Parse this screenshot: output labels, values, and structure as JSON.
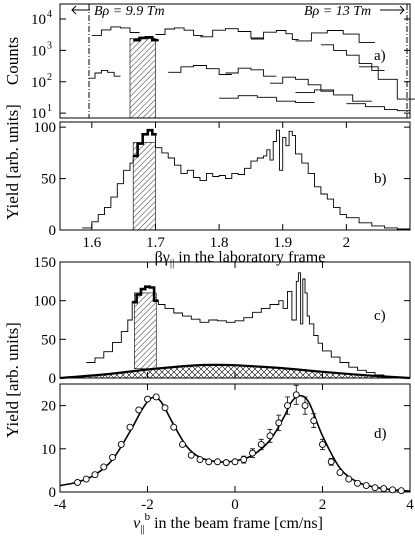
{
  "chart_data": [
    {
      "panel": "a)",
      "type": "line",
      "ylabel": "Counts",
      "yscale": "log",
      "ylim": [
        7,
        30000
      ],
      "yticks": [
        "10",
        "10",
        "10",
        "10"
      ],
      "ytick_exponents": [
        "1",
        "2",
        "3",
        "4"
      ],
      "ytick_values": [
        10,
        100,
        1000,
        10000
      ],
      "annotations": {
        "left_rigidity": "Bρ = 9.9 Tm",
        "right_rigidity": "Bρ = 13 Tm"
      },
      "highlight_range": [
        1.66,
        1.7
      ],
      "series": [
        {
          "x": [
            1.6,
            1.615,
            1.63,
            1.645,
            1.66
          ],
          "y": [
            3000,
            4500,
            5600,
            5200,
            3700
          ]
        },
        {
          "x": [
            1.595,
            1.605,
            1.615,
            1.625,
            1.635
          ],
          "y": [
            130,
            190,
            230,
            200,
            150
          ]
        },
        {
          "x": [
            1.665,
            1.675,
            1.685,
            1.695
          ],
          "y": [
            2100,
            2500,
            2600,
            2100
          ]
        },
        {
          "x": [
            1.7,
            1.715,
            1.73,
            1.745,
            1.76
          ],
          "y": [
            3200,
            4800,
            5200,
            4400,
            3000
          ]
        },
        {
          "x": [
            1.77,
            1.79,
            1.81,
            1.83,
            1.85
          ],
          "y": [
            2700,
            4400,
            4900,
            4000,
            2500
          ]
        },
        {
          "x": [
            1.85,
            1.87,
            1.89,
            1.905,
            1.915
          ],
          "y": [
            2300,
            3800,
            4300,
            3400,
            2200
          ]
        },
        {
          "x": [
            1.92,
            1.945,
            1.97,
            1.995,
            2.02
          ],
          "y": [
            2000,
            3600,
            4300,
            3300,
            1800
          ]
        },
        {
          "x": [
            1.72,
            1.74,
            1.76,
            1.78,
            1.8
          ],
          "y": [
            200,
            300,
            330,
            260,
            170
          ]
        },
        {
          "x": [
            1.81,
            1.83,
            1.85,
            1.87
          ],
          "y": [
            190,
            270,
            240,
            150
          ]
        },
        {
          "x": [
            1.88,
            1.9,
            1.92,
            1.94,
            1.96
          ],
          "y": [
            90,
            140,
            120,
            80,
            50
          ]
        },
        {
          "x": [
            1.96,
            1.98,
            2.0,
            2.02,
            2.04
          ],
          "y": [
            1500,
            1000,
            700,
            380,
            230
          ]
        },
        {
          "x": [
            1.8,
            1.83,
            1.86,
            1.89,
            1.92
          ],
          "y": [
            30,
            36,
            32,
            24,
            22
          ]
        },
        {
          "x": [
            1.92,
            1.95,
            1.98,
            2.01
          ],
          "y": [
            45,
            55,
            38,
            24
          ]
        },
        {
          "x": [
            2.0,
            2.03,
            2.06,
            2.08
          ],
          "y": [
            20,
            16,
            13,
            12
          ]
        },
        {
          "x": [
            2.02,
            2.05,
            2.08
          ],
          "y": [
            300,
            120,
            28
          ]
        }
      ]
    },
    {
      "panel": "b)",
      "type": "line",
      "ylabel": "Yield [arb. units]",
      "xlabel": "βγ|| in the laboratory frame",
      "xlim": [
        1.55,
        2.1
      ],
      "ylim": [
        0,
        105
      ],
      "xticks": [
        "1.6",
        "1.7",
        "1.8",
        "1.9",
        "2"
      ],
      "xtick_values": [
        1.6,
        1.7,
        1.8,
        1.9,
        2.0
      ],
      "yticks": [
        "0",
        "50",
        "100"
      ],
      "ytick_values": [
        0,
        50,
        100
      ],
      "highlight_range": [
        1.665,
        1.7
      ],
      "series": [
        {
          "x": [
            1.585,
            1.6,
            1.61,
            1.62,
            1.63,
            1.64,
            1.65,
            1.66,
            1.665,
            1.672,
            1.68,
            1.688,
            1.695,
            1.7,
            1.71,
            1.72,
            1.73,
            1.74,
            1.75,
            1.76,
            1.77,
            1.78,
            1.79,
            1.8,
            1.81,
            1.82,
            1.83,
            1.84,
            1.85,
            1.86,
            1.87,
            1.875,
            1.88,
            1.885,
            1.89,
            1.895,
            1.9,
            1.905,
            1.91,
            1.915,
            1.92,
            1.93,
            1.94,
            1.95,
            1.96,
            1.97,
            1.98,
            1.99,
            2.0,
            2.02,
            2.04,
            2.06,
            2.08
          ],
          "y": [
            2,
            8,
            15,
            22,
            32,
            45,
            58,
            65,
            72,
            84,
            93,
            97,
            93,
            80,
            75,
            70,
            63,
            55,
            58,
            51,
            48,
            55,
            52,
            53,
            50,
            55,
            54,
            60,
            67,
            70,
            72,
            78,
            68,
            86,
            97,
            58,
            90,
            82,
            96,
            92,
            74,
            65,
            55,
            42,
            35,
            30,
            22,
            15,
            12,
            7,
            4,
            2,
            1
          ]
        },
        {
          "x": [
            1.665,
            1.672,
            1.68,
            1.688,
            1.695
          ],
          "y": [
            72,
            84,
            93,
            97,
            93
          ]
        }
      ]
    },
    {
      "panel": "c)",
      "type": "line",
      "ylabel": "Yield [arb. units]",
      "xlim": [
        -4,
        4
      ],
      "ylim": [
        0,
        150
      ],
      "yticks": [
        "0",
        "50",
        "100",
        "150"
      ],
      "ytick_values": [
        0,
        50,
        100,
        150
      ],
      "highlight_range": [
        -2.3,
        -1.8
      ],
      "series": [
        {
          "x": [
            -3.4,
            -3.2,
            -3.0,
            -2.8,
            -2.6,
            -2.45,
            -2.35,
            -2.25,
            -2.15,
            -2.05,
            -1.95,
            -1.85,
            -1.75,
            -1.6,
            -1.4,
            -1.2,
            -1.0,
            -0.8,
            -0.6,
            -0.4,
            -0.2,
            0.0,
            0.2,
            0.4,
            0.6,
            0.8,
            1.0,
            1.1,
            1.2,
            1.3,
            1.4,
            1.45,
            1.5,
            1.55,
            1.6,
            1.65,
            1.7,
            1.8,
            1.9,
            2.0,
            2.2,
            2.4,
            2.6,
            2.8,
            3.0,
            3.2,
            3.4
          ],
          "y": [
            20,
            26,
            34,
            46,
            60,
            75,
            98,
            108,
            115,
            118,
            117,
            100,
            95,
            90,
            84,
            80,
            76,
            72,
            75,
            74,
            72,
            74,
            78,
            85,
            90,
            95,
            100,
            90,
            112,
            75,
            125,
            136,
            70,
            128,
            110,
            80,
            70,
            55,
            45,
            35,
            27,
            20,
            14,
            10,
            7,
            4,
            2
          ]
        },
        {
          "x": [
            -2.35,
            -2.25,
            -2.15,
            -2.05,
            -1.95,
            -1.85
          ],
          "y": [
            98,
            108,
            115,
            118,
            117,
            100
          ]
        },
        {
          "x": [
            -4.0,
            -3.0,
            -2.0,
            -1.0,
            -0.5,
            0.0,
            1.0,
            2.0,
            3.0,
            4.0
          ],
          "y": [
            0,
            4.5,
            11,
            16,
            17,
            16.5,
            13,
            8,
            3.5,
            0
          ]
        }
      ]
    },
    {
      "panel": "d)",
      "type": "scatter",
      "ylabel": "Yield [arb. units]",
      "xlabel": "v||b in the beam frame [cm/ns]",
      "xlim": [
        -4,
        4
      ],
      "ylim": [
        0,
        25
      ],
      "xticks": [
        "-4",
        "-2",
        "0",
        "2",
        "4"
      ],
      "xtick_values": [
        -4,
        -2,
        0,
        2,
        4
      ],
      "yticks": [
        "0",
        "10",
        "20"
      ],
      "ytick_values": [
        0,
        10,
        20
      ],
      "series": [
        {
          "x": [
            -3.6,
            -3.4,
            -3.2,
            -3.0,
            -2.8,
            -2.6,
            -2.4,
            -2.2,
            -2.0,
            -1.8,
            -1.6,
            -1.4,
            -1.2,
            -1.0,
            -0.8,
            -0.6,
            -0.4,
            -0.2,
            0.0,
            0.2,
            0.4,
            0.6,
            0.8,
            1.0,
            1.2,
            1.4,
            1.6,
            1.8,
            2.0,
            2.2,
            2.4,
            2.6,
            2.8,
            3.0,
            3.2,
            3.4,
            3.6,
            3.8
          ],
          "y": [
            2.2,
            3.0,
            4.0,
            5.8,
            8.0,
            11.0,
            15.0,
            19.0,
            21.5,
            22.0,
            19.5,
            15.0,
            11.0,
            8.5,
            7.5,
            7.0,
            7.0,
            6.8,
            7.0,
            7.5,
            9.0,
            11.0,
            13.0,
            16.0,
            20.0,
            22.5,
            20.0,
            16.5,
            11.0,
            7.0,
            4.5,
            3.0,
            2.0,
            1.5,
            1.0,
            0.8,
            0.5,
            0.3
          ],
          "yerr": [
            0.3,
            0.3,
            0.4,
            0.4,
            0.4,
            0.5,
            0.5,
            0.6,
            0.6,
            0.6,
            0.6,
            0.5,
            0.5,
            0.5,
            0.5,
            0.5,
            0.5,
            0.6,
            0.6,
            0.8,
            1.0,
            1.2,
            1.5,
            1.8,
            2.0,
            2.2,
            2.0,
            1.6,
            1.2,
            0.8,
            0.5,
            0.4,
            0.3,
            0.3,
            0.2,
            0.2,
            0.2,
            0.2
          ]
        },
        {
          "x": [
            -4.0,
            -3.6,
            -3.2,
            -2.8,
            -2.4,
            -2.1,
            -1.9,
            -1.7,
            -1.4,
            -1.1,
            -0.8,
            -0.4,
            0.0,
            0.4,
            0.8,
            1.1,
            1.3,
            1.5,
            1.7,
            2.0,
            2.4,
            2.8,
            3.2,
            3.6,
            4.0
          ],
          "y": [
            1.5,
            2.3,
            4.0,
            7.5,
            14.0,
            19.5,
            21.8,
            21.0,
            15.5,
            10.5,
            8.0,
            7.0,
            7.2,
            8.5,
            12.0,
            17.0,
            21.0,
            22.3,
            20.5,
            13.0,
            5.5,
            2.3,
            1.1,
            0.5,
            0.2
          ]
        }
      ]
    }
  ]
}
